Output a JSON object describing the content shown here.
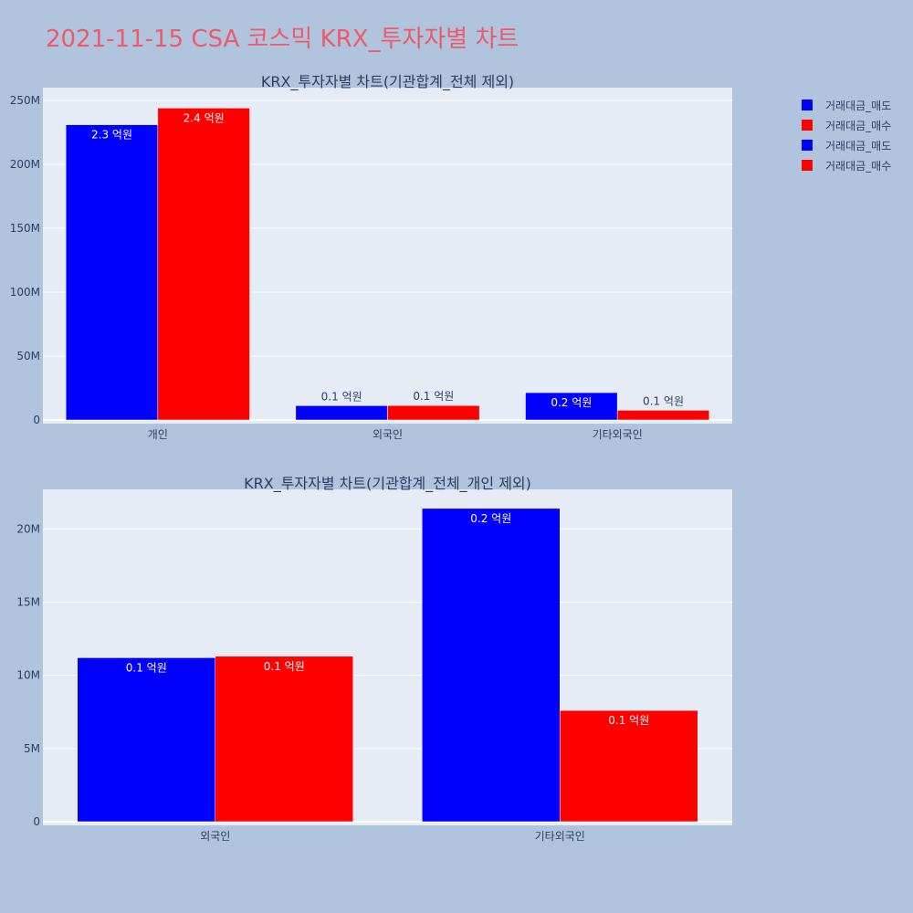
{
  "title": "2021-11-15 CSA 코스믹 KRX_투자자별 차트",
  "colors": {
    "sell": "#0000ff",
    "buy": "#ff0000",
    "plot_bg": "#e5ecf6",
    "page_bg": "#b0c4de",
    "title": "#ef5a6a"
  },
  "legend": [
    {
      "name": "거래대금_매도",
      "color": "#0000ff"
    },
    {
      "name": "거래대금_매수",
      "color": "#ff0000"
    },
    {
      "name": "거래대금_매도",
      "color": "#0000ff"
    },
    {
      "name": "거래대금_매수",
      "color": "#ff0000"
    }
  ],
  "chart_data": [
    {
      "type": "bar",
      "title": "KRX_투자자별 차트(기관합계_전체 제외)",
      "categories": [
        "개인",
        "외국인",
        "기타외국인"
      ],
      "ylim": [
        0,
        260000000
      ],
      "yticks": [
        0,
        50000000,
        100000000,
        150000000,
        200000000,
        250000000
      ],
      "ytick_labels": [
        "0",
        "50M",
        "100M",
        "150M",
        "200M",
        "250M"
      ],
      "grid": true,
      "series": [
        {
          "name": "거래대금_매도",
          "color": "#0000ff",
          "values": [
            231000000,
            11200000,
            21400000
          ],
          "labels": [
            "2.3 억원",
            "0.1 억원",
            "0.2 억원"
          ],
          "label_inside": [
            true,
            false,
            true
          ]
        },
        {
          "name": "거래대금_매수",
          "color": "#ff0000",
          "values": [
            244000000,
            11300000,
            7600000
          ],
          "labels": [
            "2.4 억원",
            "0.1 억원",
            "0.1 억원"
          ],
          "label_inside": [
            true,
            false,
            false
          ]
        }
      ]
    },
    {
      "type": "bar",
      "title": "KRX_투자자별 차트(기관합계_전체_개인 제외)",
      "categories": [
        "외국인",
        "기타외국인"
      ],
      "ylim": [
        0,
        22700000
      ],
      "yticks": [
        0,
        5000000,
        10000000,
        15000000,
        20000000
      ],
      "ytick_labels": [
        "0",
        "5M",
        "10M",
        "15M",
        "20M"
      ],
      "grid": true,
      "series": [
        {
          "name": "거래대금_매도",
          "color": "#0000ff",
          "values": [
            11200000,
            21400000
          ],
          "labels": [
            "0.1 억원",
            "0.2 억원"
          ],
          "label_inside": [
            true,
            true
          ]
        },
        {
          "name": "거래대금_매수",
          "color": "#ff0000",
          "values": [
            11300000,
            7600000
          ],
          "labels": [
            "0.1 억원",
            "0.1 억원"
          ],
          "label_inside": [
            true,
            true
          ]
        }
      ]
    }
  ]
}
